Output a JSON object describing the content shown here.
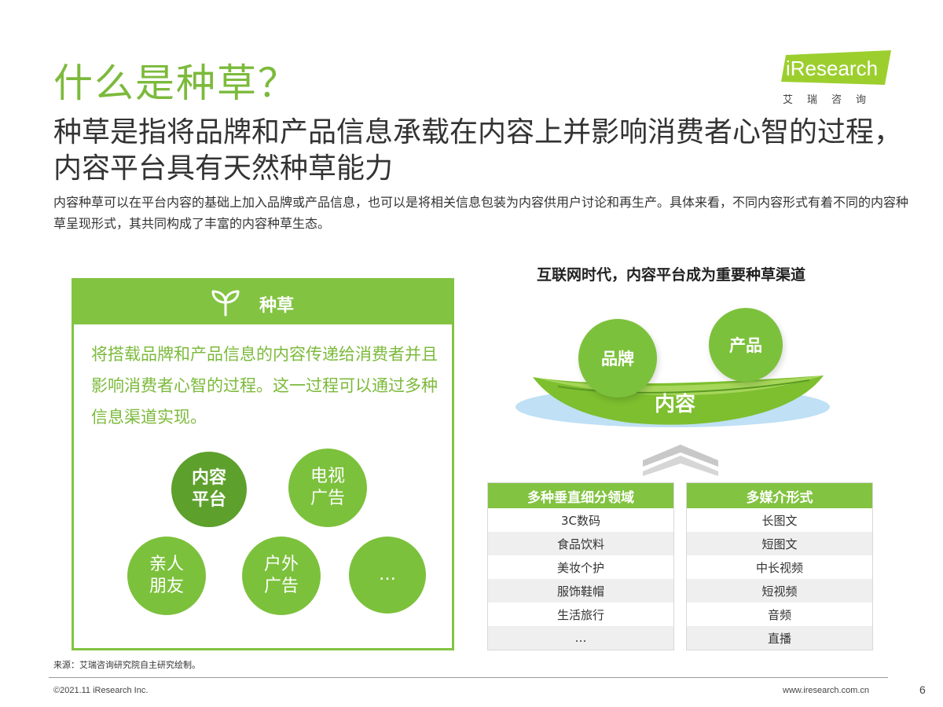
{
  "title": "什么是种草？",
  "logo": {
    "text": "iResearch",
    "subtitle": "艾瑞咨询"
  },
  "headline": "种草是指将品牌和产品信息承载在内容上并影响消费者心智的过程，内容平台具有天然种草能力",
  "intro": "内容种草可以在平台内容的基础上加入品牌或产品信息，也可以是将相关信息包装为内容供用户讨论和再生产。具体来看，不同内容形式有着不同的内容种草呈现形式，其共同构成了丰富的内容种草生态。",
  "seed_panel": {
    "title": "种草",
    "description": "将搭载品牌和产品信息的内容传递给消费者并且影响消费者心智的过程。这一过程可以通过多种信息渠道实现。",
    "channels": [
      "内容平台",
      "电视广告",
      "亲人朋友",
      "户外广告",
      "…"
    ]
  },
  "channel_section": {
    "title": "互联网时代，内容平台成为重要种草渠道",
    "brand": "品牌",
    "product": "产品",
    "content": "内容"
  },
  "verticals": {
    "header": "多种垂直细分领域",
    "items": [
      "3C数码",
      "食品饮料",
      "美妆个护",
      "服饰鞋帽",
      "生活旅行",
      "…"
    ]
  },
  "media_forms": {
    "header": "多媒介形式",
    "items": [
      "长图文",
      "短图文",
      "中长视频",
      "短视频",
      "音频",
      "直播"
    ]
  },
  "footer": {
    "source": "来源：艾瑞咨询研究院自主研究绘制。",
    "copyright": "©2021.11 iResearch Inc.",
    "website": "www.iresearch.com.cn",
    "page": "6"
  },
  "colors": {
    "accent": "#7cba3b",
    "header_green": "#82c341",
    "dark_circle": "#5da02c",
    "light_circle": "#7cc13c",
    "logo_green": "#9ccf2e"
  }
}
